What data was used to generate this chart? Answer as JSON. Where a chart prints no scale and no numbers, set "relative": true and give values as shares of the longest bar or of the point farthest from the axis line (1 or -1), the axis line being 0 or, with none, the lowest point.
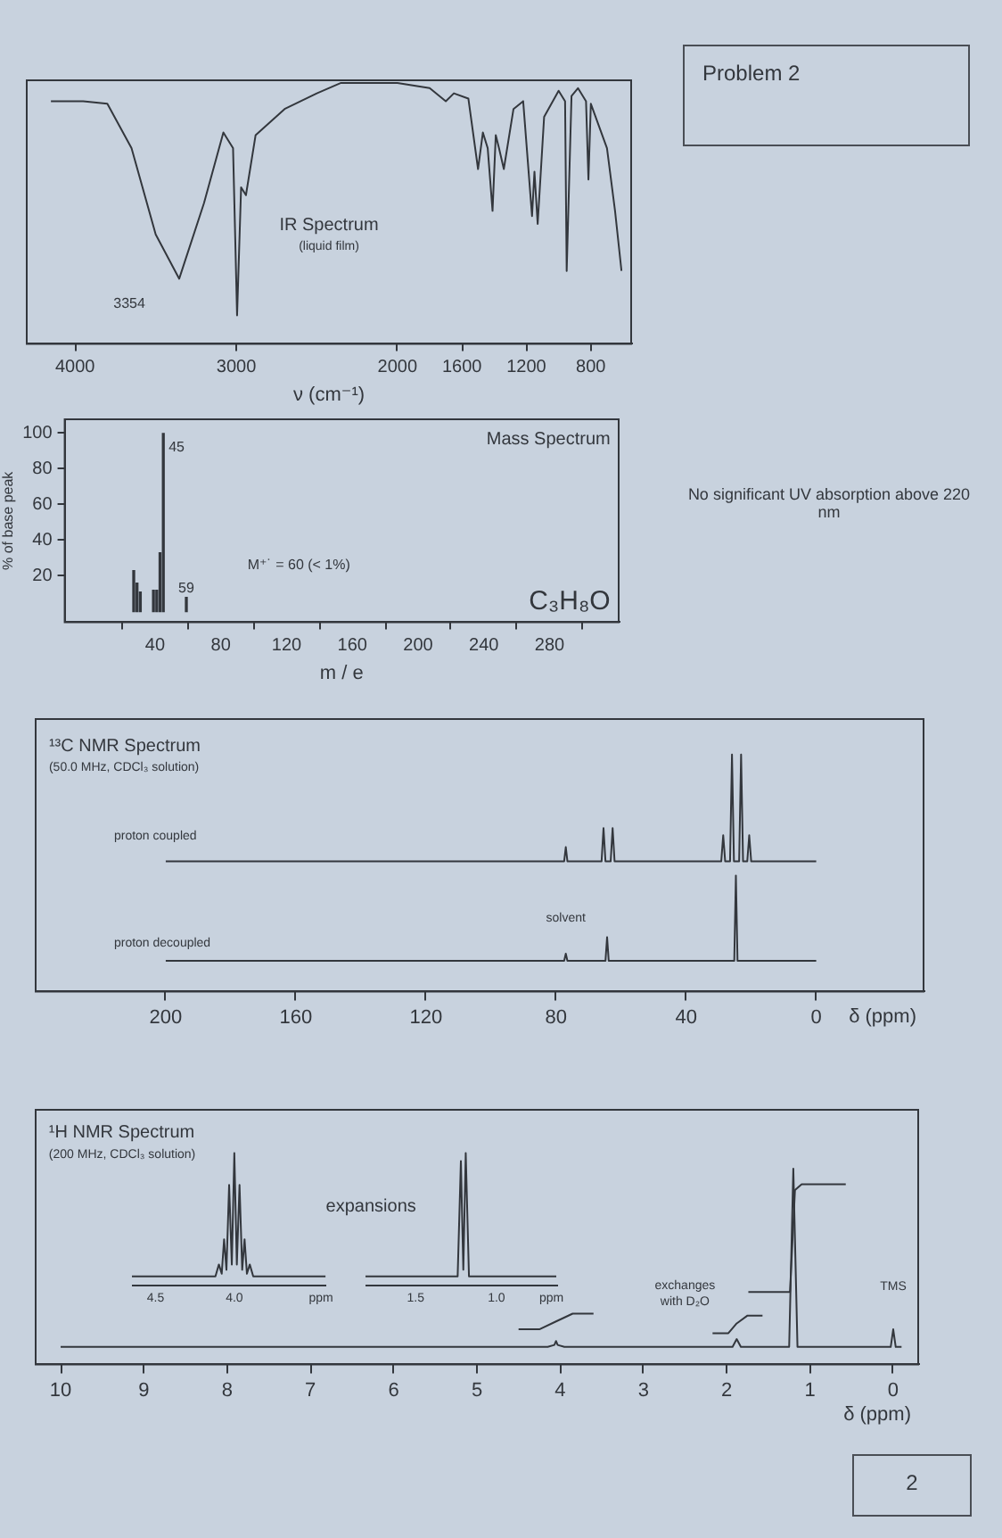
{
  "chart_data": [
    {
      "type": "other",
      "title": "Problem 2",
      "annotations": [
        "No significant UV absorption above 220 nm",
        "2"
      ]
    },
    {
      "type": "line",
      "title": "IR Spectrum",
      "subtitle": "(liquid film)",
      "xlabel": "ν (cm⁻¹)",
      "relative": true,
      "grid": false,
      "x": [
        4150,
        3950,
        3800,
        3650,
        3500,
        3354,
        3200,
        3080,
        3020,
        2995,
        2970,
        2940,
        2880,
        2700,
        2500,
        2350,
        2000,
        1800,
        1700,
        1650,
        1560,
        1500,
        1470,
        1440,
        1410,
        1390,
        1370,
        1340,
        1280,
        1220,
        1165,
        1150,
        1130,
        1090,
        1000,
        960,
        950,
        920,
        880,
        830,
        815,
        800,
        700,
        650,
        610
      ],
      "series": [
        {
          "color": "#33373d",
          "values": [
            0.93,
            0.93,
            0.92,
            0.75,
            0.42,
            0.25,
            0.54,
            0.81,
            0.75,
            0.11,
            0.6,
            0.57,
            0.8,
            0.9,
            0.96,
            1,
            1,
            0.98,
            0.93,
            0.96,
            0.94,
            0.67,
            0.81,
            0.75,
            0.51,
            0.8,
            0.75,
            0.67,
            0.9,
            0.93,
            0.49,
            0.66,
            0.46,
            0.87,
            0.97,
            0.93,
            0.28,
            0.95,
            0.98,
            0.93,
            0.63,
            0.92,
            0.75,
            0.51,
            0.28
          ]
        }
      ],
      "xlim": [
        4300,
        550
      ],
      "xticks": [
        4000,
        3000,
        2000,
        1600,
        1200,
        800
      ],
      "annotations": [
        {
          "text": "3354",
          "x": 3354,
          "y": 0.25
        }
      ]
    },
    {
      "type": "bar",
      "title": "Mass Spectrum",
      "xlabel": "m / e",
      "ylabel": "% of base peak",
      "grid": false,
      "x": [
        27,
        29,
        31,
        39,
        41,
        43,
        45,
        59
      ],
      "series": [
        {
          "color": "#33373d",
          "values": [
            23,
            16,
            11,
            12,
            12,
            33,
            100,
            8
          ]
        }
      ],
      "xlim": [
        -15,
        322
      ],
      "xticks": [
        40,
        80,
        120,
        160,
        200,
        240,
        280
      ],
      "ylim": [
        -6,
        108
      ],
      "yticks": [
        20,
        40,
        60,
        80,
        100
      ],
      "annotations": [
        {
          "text": "45",
          "x": 45,
          "y": 100
        },
        {
          "text": "59",
          "x": 59,
          "y": 8
        },
        "M⁺˙ = 60 (< 1%)",
        "C₃H₈O"
      ]
    },
    {
      "type": "line",
      "title": "¹³C NMR Spectrum",
      "subtitle": "(50.0 MHz, CDCl₃ solution)",
      "xlabel": "δ (ppm)",
      "relative": true,
      "grid": false,
      "xlim": [
        240,
        -33
      ],
      "xticks": [
        200,
        160,
        120,
        80,
        40,
        0
      ],
      "series": [
        {
          "name": "proton coupled",
          "color": "#33373d",
          "x": [
            200,
            77.5,
            77,
            76.5,
            66,
            65.4,
            64.8,
            63.2,
            62.6,
            62,
            29.2,
            28.6,
            28,
            26.5,
            25.9,
            25.3,
            23.7,
            23.1,
            22.5,
            21.2,
            20.6,
            20,
            0
          ],
          "values": [
            0.55,
            0.55,
            0.61,
            0.55,
            0.55,
            0.69,
            0.55,
            0.55,
            0.69,
            0.55,
            0.55,
            0.66,
            0.55,
            0.55,
            1,
            0.55,
            0.55,
            1,
            0.55,
            0.55,
            0.66,
            0.55,
            0.55
          ]
        },
        {
          "name": "proton decoupled",
          "color": "#33373d",
          "x": [
            200,
            77.5,
            77,
            76.5,
            64.8,
            64.3,
            63.8,
            25.2,
            24.7,
            24.2,
            0
          ],
          "values": [
            0.13,
            0.13,
            0.16,
            0.13,
            0.13,
            0.23,
            0.13,
            0.13,
            0.49,
            0.13,
            0.13
          ]
        }
      ],
      "annotations": [
        {
          "text": "solvent",
          "x": 77,
          "y": 0.16
        }
      ]
    },
    {
      "type": "line",
      "title": "¹H NMR Spectrum",
      "subtitle": "(200 MHz, CDCl₃ solution)",
      "xlabel": "δ (ppm)",
      "relative": true,
      "grid": false,
      "xlim": [
        10.3,
        -0.3
      ],
      "xticks": [
        10,
        9,
        8,
        7,
        6,
        5,
        4,
        3,
        2,
        1,
        0
      ],
      "series": [
        {
          "color": "#33373d",
          "x": [
            10,
            4.15,
            4.07,
            4.05,
            4.03,
            3.95,
            1.93,
            1.88,
            1.83,
            1.25,
            1.2,
            1.15,
            0.03,
            0,
            -0.03,
            -0.1
          ],
          "values": [
            0.09,
            0.09,
            0.1,
            0.12,
            0.1,
            0.09,
            0.09,
            0.13,
            0.09,
            0.09,
            1,
            0.09,
            0.09,
            0.18,
            0.09,
            0.09
          ]
        },
        {
          "color": "#33373d",
          "x": [
            4.5,
            4.25,
            4.05,
            3.85,
            3.6
          ],
          "values": [
            0.18,
            0.18,
            0.22,
            0.26,
            0.26
          ]
        },
        {
          "color": "#33373d",
          "x": [
            2.17,
            1.98,
            1.88,
            1.75,
            1.57
          ],
          "values": [
            0.16,
            0.16,
            0.21,
            0.25,
            0.25
          ]
        },
        {
          "color": "#33373d",
          "x": [
            1.74,
            1.24,
            1.21,
            1.18,
            1.1,
            0.57
          ],
          "values": [
            0.37,
            0.37,
            0.63,
            0.89,
            0.92,
            0.92
          ]
        }
      ],
      "annotations": [
        "expansions",
        {
          "text": "exchanges with D₂O",
          "x": 1.88,
          "y": 0.13
        },
        {
          "text": "TMS",
          "x": 0,
          "y": 0.18
        }
      ]
    },
    {
      "type": "line",
      "relative": true,
      "grid": false,
      "xlim": [
        4.65,
        3.42
      ],
      "xticks": [
        {
          "value": 4.5,
          "label": "4.5"
        },
        {
          "value": 4,
          "label": "4.0"
        },
        {
          "value": 3.45,
          "label": "ppm"
        }
      ],
      "series": [
        {
          "color": "#33373d",
          "x": [
            4.65,
            4.12,
            4.098,
            4.08,
            4.065,
            4.05,
            4.033,
            4.016,
            4,
            3.984,
            3.967,
            3.95,
            3.935,
            3.92,
            3.902,
            3.88,
            3.42
          ],
          "values": [
            0.07,
            0.07,
            0.16,
            0.09,
            0.35,
            0.12,
            0.76,
            0.16,
            1,
            0.16,
            0.76,
            0.12,
            0.35,
            0.09,
            0.16,
            0.07,
            0.07
          ]
        }
      ]
    },
    {
      "type": "line",
      "relative": true,
      "grid": false,
      "xlim": [
        1.81,
        0.63
      ],
      "xticks": [
        {
          "value": 1.5,
          "label": "1.5"
        },
        {
          "value": 1,
          "label": "1.0"
        },
        {
          "value": 0.66,
          "label": "ppm"
        }
      ],
      "series": [
        {
          "color": "#33373d",
          "x": [
            1.81,
            1.24,
            1.22,
            1.205,
            1.19,
            1.17,
            0.63
          ],
          "values": [
            0.07,
            0.07,
            0.94,
            0.12,
            1,
            0.07,
            0.07
          ]
        }
      ]
    }
  ]
}
